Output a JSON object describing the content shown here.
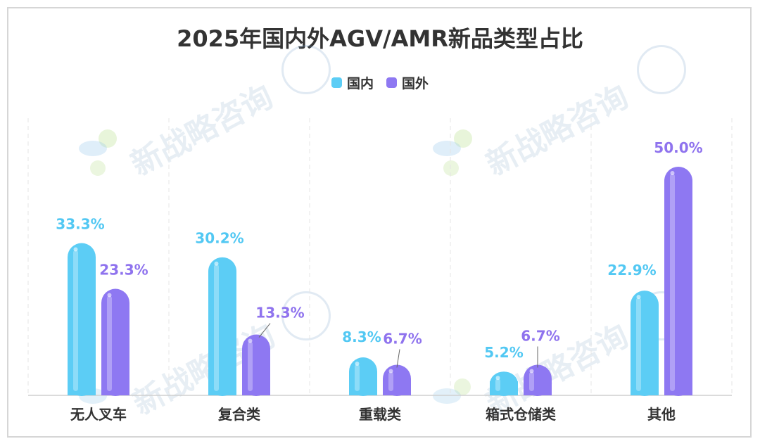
{
  "colors": {
    "domestic": "#5ccdf5",
    "domestic_label": "#52c8f3",
    "foreign": "#8e78f2",
    "foreign_label": "#8f73ee",
    "grid": "#e4e4e4",
    "axis": "#cfcfcf",
    "text": "#333333"
  },
  "watermark": {
    "text": "新战略咨询"
  },
  "chart_data": {
    "type": "bar",
    "title": "2025年国内外AGV/AMR新品类型占比",
    "categories": [
      "无人叉车",
      "复合类",
      "重载类",
      "箱式仓储类",
      "其他"
    ],
    "series": [
      {
        "name": "国内",
        "values": [
          33.3,
          30.2,
          8.3,
          5.2,
          22.9
        ],
        "labels": [
          "33.3%",
          "30.2%",
          "8.3%",
          "5.2%",
          "22.9%"
        ]
      },
      {
        "name": "国外",
        "values": [
          23.3,
          13.3,
          6.7,
          6.7,
          50.0
        ],
        "labels": [
          "23.3%",
          "13.3%",
          "6.7%",
          "6.7%",
          "50.0%"
        ]
      }
    ],
    "ylim": [
      0,
      55
    ],
    "grid": "vertical-dashed",
    "legend_position": "top-center"
  }
}
